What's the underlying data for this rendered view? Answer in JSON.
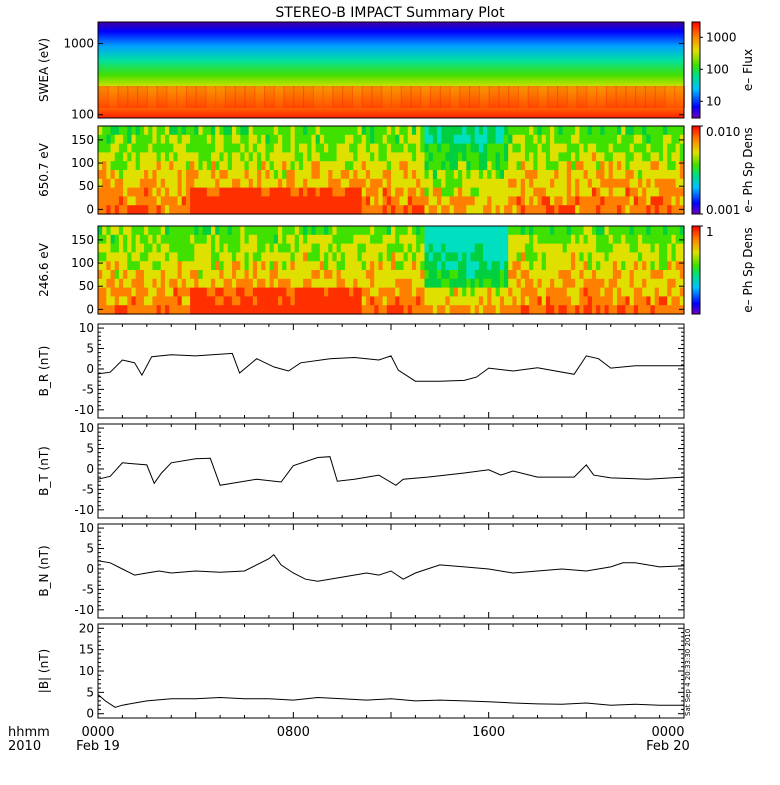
{
  "title": "STEREO-B IMPACT Summary Plot",
  "x_axis": {
    "row1_label": "hhmm",
    "row2_label": "2010",
    "ticks": [
      {
        "top": "0000",
        "bottom": "Feb 19"
      },
      {
        "top": "0800",
        "bottom": ""
      },
      {
        "top": "1600",
        "bottom": ""
      },
      {
        "top": "0000",
        "bottom": "Feb 20"
      }
    ]
  },
  "timestamp": "Sat Sep  4 20:33:30 2010",
  "chart_data": [
    {
      "type": "heatmap",
      "ylabel": "SWEA (eV)",
      "yscale": "log",
      "ylim": [
        90,
        2000
      ],
      "yticks": [
        "1000",
        "100"
      ],
      "colorbar": {
        "label": "e– Flux",
        "scale": "log",
        "range": [
          3,
          3000
        ],
        "ticks": [
          "1000",
          "100",
          "10"
        ]
      }
    },
    {
      "type": "heatmap",
      "ylabel": "650.7 eV",
      "ylim": [
        -10,
        180
      ],
      "yticks": [
        "150",
        "100",
        "50",
        "0"
      ],
      "colorbar": {
        "label": "e– Ph Sp Dens",
        "scale": "log",
        "range": [
          0.001,
          0.01
        ],
        "ticks": [
          "0.010",
          "0.001"
        ]
      }
    },
    {
      "type": "heatmap",
      "ylabel": "246.6 eV",
      "ylim": [
        -10,
        180
      ],
      "yticks": [
        "150",
        "100",
        "50",
        "0"
      ],
      "colorbar": {
        "label": "e– Ph Sp Dens",
        "scale": "linear",
        "range": [
          0,
          1
        ],
        "ticks": [
          "1"
        ]
      }
    },
    {
      "type": "line",
      "ylabel": "B_R (nT)",
      "ylim": [
        -12,
        11
      ],
      "yticks": [
        "10",
        "5",
        "0",
        "-5",
        "-10"
      ],
      "xlim": [
        0,
        24
      ],
      "series": [
        {
          "x": [
            0,
            0.5,
            1,
            1.5,
            1.8,
            2.2,
            3,
            4,
            5.5,
            5.8,
            6.5,
            7.2,
            7.8,
            8.3,
            9.5,
            10.5,
            11.5,
            12,
            12.3,
            13,
            14,
            15,
            15.5,
            16,
            17,
            18,
            19.5,
            20,
            20.5,
            21,
            22,
            23,
            24
          ],
          "y": [
            -1.2,
            -0.8,
            2.2,
            1.5,
            -1.5,
            3,
            3.5,
            3.2,
            3.8,
            -1,
            2.5,
            0.5,
            -0.5,
            1.5,
            2.5,
            2.8,
            2.2,
            3.2,
            -0.3,
            -3,
            -3,
            -2.8,
            -2,
            0.2,
            -0.5,
            0.3,
            -1.3,
            3.2,
            2.5,
            0.2,
            0.8,
            0.8,
            0.8
          ]
        }
      ]
    },
    {
      "type": "line",
      "ylabel": "B_T (nT)",
      "ylim": [
        -12,
        11
      ],
      "yticks": [
        "10",
        "5",
        "0",
        "-5",
        "-10"
      ],
      "xlim": [
        0,
        24
      ],
      "series": [
        {
          "x": [
            0,
            0.5,
            1,
            2,
            2.3,
            2.6,
            3,
            4,
            4.6,
            5,
            5.5,
            6.5,
            7.5,
            8,
            9,
            9.5,
            9.8,
            10.5,
            11.5,
            12.2,
            12.5,
            13.5,
            15,
            16,
            16.5,
            17,
            18,
            19.5,
            20,
            20.3,
            21,
            22.5,
            24
          ],
          "y": [
            -2.5,
            -1.8,
            1.5,
            1,
            -3.5,
            -1,
            1.5,
            2.5,
            2.6,
            -4,
            -3.5,
            -2.5,
            -3.2,
            0.8,
            2.8,
            3,
            -3,
            -2.5,
            -1.5,
            -4,
            -2.5,
            -2,
            -1,
            -0.2,
            -1.5,
            -0.5,
            -2,
            -2,
            1,
            -1.5,
            -2.2,
            -2.5,
            -2
          ]
        }
      ]
    },
    {
      "type": "line",
      "ylabel": "B_N (nT)",
      "ylim": [
        -12,
        11
      ],
      "yticks": [
        "10",
        "5",
        "0",
        "-5",
        "-10"
      ],
      "xlim": [
        0,
        24
      ],
      "series": [
        {
          "x": [
            0,
            0.5,
            1,
            1.5,
            2,
            2.5,
            3,
            4,
            5,
            6,
            7,
            7.2,
            7.5,
            8,
            8.5,
            9,
            10,
            11,
            11.5,
            12,
            12.5,
            13,
            14,
            15,
            16,
            17,
            18,
            19,
            20,
            21,
            21.5,
            22,
            23,
            24
          ],
          "y": [
            2,
            1.5,
            0,
            -1.5,
            -1,
            -0.5,
            -1,
            -0.5,
            -0.8,
            -0.5,
            2.5,
            3.5,
            1,
            -1,
            -2.5,
            -3,
            -2,
            -1,
            -1.5,
            -0.5,
            -2.5,
            -1,
            1,
            0.5,
            0,
            -1,
            -0.5,
            0,
            -0.5,
            0.5,
            1.5,
            1.5,
            0.5,
            0.8
          ]
        }
      ]
    },
    {
      "type": "line",
      "ylabel": "|B| (nT)",
      "ylim": [
        -1,
        21
      ],
      "yticks": [
        "20",
        "15",
        "10",
        "5",
        "0"
      ],
      "xlim": [
        0,
        24
      ],
      "series": [
        {
          "x": [
            0,
            0.3,
            0.7,
            1,
            1.5,
            2,
            3,
            4,
            5,
            6,
            7,
            8,
            9,
            10,
            11,
            12,
            13,
            14,
            15,
            16,
            17,
            18,
            19,
            20,
            21,
            22,
            23,
            24
          ],
          "y": [
            4.5,
            3,
            1.5,
            2,
            2.5,
            3,
            3.5,
            3.5,
            3.8,
            3.5,
            3.5,
            3.2,
            3.8,
            3.5,
            3.2,
            3.5,
            3,
            3.2,
            3,
            2.8,
            2.5,
            2.3,
            2.2,
            2.5,
            2,
            2.2,
            2,
            2
          ]
        }
      ]
    }
  ]
}
